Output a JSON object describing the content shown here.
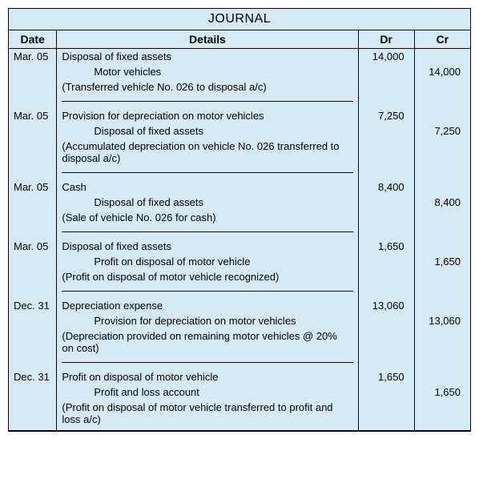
{
  "title": "JOURNAL",
  "headers": {
    "date": "Date",
    "details": "Details",
    "dr": "Dr",
    "cr": "Cr"
  },
  "colors": {
    "background": "#d6eaf5",
    "border": "#000000",
    "text": "#000000"
  },
  "entries": [
    {
      "date": "Mar. 05",
      "debit_account": "Disposal of fixed assets",
      "credit_account": "Motor vehicles",
      "note": "(Transferred vehicle No. 026 to disposal a/c)",
      "dr": "14,000",
      "cr": "14,000"
    },
    {
      "date": "Mar. 05",
      "debit_account": "Provision for depreciation on motor vehicles",
      "credit_account": "Disposal of fixed assets",
      "note": "(Accumulated depreciation on vehicle No. 026 transferred to disposal a/c)",
      "dr": "7,250",
      "cr": "7,250"
    },
    {
      "date": "Mar. 05",
      "debit_account": "Cash",
      "credit_account": "Disposal of fixed assets",
      "note": "(Sale of vehicle No. 026 for cash)",
      "dr": "8,400",
      "cr": "8,400"
    },
    {
      "date": "Mar. 05",
      "debit_account": "Disposal of fixed assets",
      "credit_account": "Profit on disposal of motor vehicle",
      "note": "(Profit on disposal of motor vehicle recognized)",
      "dr": "1,650",
      "cr": "1,650"
    },
    {
      "date": "Dec. 31",
      "debit_account": "Depreciation expense",
      "credit_account": "Provision for depreciation on motor vehicles",
      "note": "(Depreciation provided on remaining motor vehicles @ 20% on cost)",
      "dr": "13,060",
      "cr": "13,060"
    },
    {
      "date": "Dec. 31",
      "debit_account": "Profit on disposal of motor vehicle",
      "credit_account": "Profit and loss account",
      "note": "(Profit on disposal of motor vehicle transferred to profit and loss a/c)",
      "dr": "1,650",
      "cr": "1,650"
    }
  ]
}
